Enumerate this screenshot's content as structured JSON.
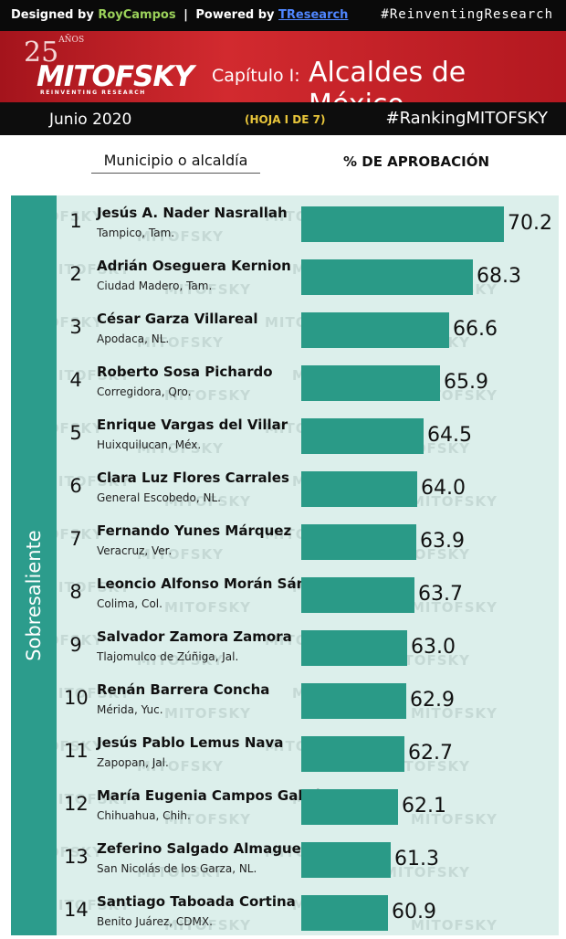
{
  "header": {
    "designed_by": "Designed by",
    "designer": "RoyCampos",
    "separator": "|",
    "powered_by": "Powered by",
    "powered_name": "TResearch",
    "top_hashtag": "#ReinventingResearch",
    "anios_number": "25",
    "anios_label": "AÑOS",
    "brand": "MITOFSKY",
    "brand_tagline": "REINVENTING RESEARCH",
    "chapter": "Capítulo I:",
    "chapter_title": "Alcaldes de México",
    "date": "Junio 2020",
    "sheet": "(HOJA I DE 7)",
    "bottom_hashtag": "#RankingMITOFSKY"
  },
  "columns": {
    "municipality": "Municipio o alcaldía",
    "approval": "% DE APROBACIÓN"
  },
  "category_label": "Sobresaliente",
  "watermark": "MITOFSKY",
  "colors": {
    "bar": "#2a9a87",
    "side_band": "#2c9c8c",
    "panel": "#dcefeb",
    "red": "#c8202a"
  },
  "chart_data": {
    "type": "bar",
    "orientation": "horizontal",
    "title": "Alcaldes de México",
    "xlabel": "% DE APROBACIÓN",
    "ylabel": "Municipio o alcaldía",
    "grid": false,
    "rows": [
      {
        "rank": "1",
        "name": "Jesús A. Nader Nasrallah",
        "place": "Tampico, Tam.",
        "value": 70.2,
        "label": "70.2"
      },
      {
        "rank": "2",
        "name": "Adrián Oseguera Kernion",
        "place": "Ciudad Madero, Tam.",
        "value": 68.3,
        "label": "68.3"
      },
      {
        "rank": "3",
        "name": "César Garza Villareal",
        "place": "Apodaca, NL.",
        "value": 66.6,
        "label": "66.6"
      },
      {
        "rank": "4",
        "name": "Roberto Sosa Pichardo",
        "place": "Corregidora, Qro.",
        "value": 65.9,
        "label": "65.9"
      },
      {
        "rank": "5",
        "name": "Enrique Vargas del Villar",
        "place": "Huixquilucan, Méx.",
        "value": 64.5,
        "label": "64.5"
      },
      {
        "rank": "6",
        "name": "Clara Luz Flores Carrales",
        "place": "General Escobedo, NL.",
        "value": 64.0,
        "label": "64.0"
      },
      {
        "rank": "7",
        "name": "Fernando Yunes Márquez",
        "place": "Veracruz, Ver.",
        "value": 63.9,
        "label": "63.9"
      },
      {
        "rank": "8",
        "name": "Leoncio Alfonso Morán Sánchez",
        "place": "Colima, Col.",
        "value": 63.7,
        "label": "63.7"
      },
      {
        "rank": "9",
        "name": "Salvador Zamora Zamora",
        "place": "Tlajomulco de Zúñiga, Jal.",
        "value": 63.0,
        "label": "63.0"
      },
      {
        "rank": "10",
        "name": "Renán Barrera Concha",
        "place": "Mérida, Yuc.",
        "value": 62.9,
        "label": "62.9"
      },
      {
        "rank": "11",
        "name": "Jesús Pablo Lemus Nava",
        "place": "Zapopan, Jal.",
        "value": 62.7,
        "label": "62.7"
      },
      {
        "rank": "12",
        "name": "María Eugenia Campos Galván",
        "place": "Chihuahua, Chih.",
        "value": 62.1,
        "label": "62.1"
      },
      {
        "rank": "13",
        "name": "Zeferino Salgado Almaguer",
        "place": "San Nicolás de los Garza, NL.",
        "value": 61.3,
        "label": "61.3"
      },
      {
        "rank": "14",
        "name": "Santiago Taboada Cortina",
        "place": "Benito Juárez, CDMX.",
        "value": 60.9,
        "label": "60.9"
      }
    ]
  }
}
